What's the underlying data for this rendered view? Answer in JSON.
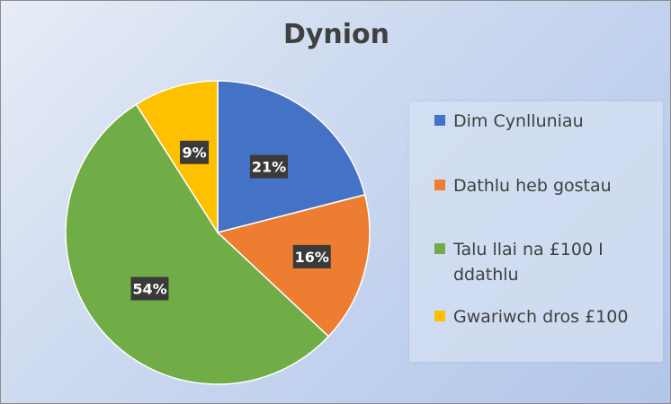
{
  "chart_data": {
    "type": "pie",
    "title": "Dynion",
    "categories": [
      "Dim Cynlluniau",
      "Dathlu heb gostau",
      "Talu llai na £100 I ddathlu",
      "Gwariwch dros £100"
    ],
    "values": [
      21,
      16,
      54,
      9
    ],
    "data_labels": [
      "21%",
      "16%",
      "54%",
      "9%"
    ],
    "colors": [
      "#4472c4",
      "#ed7d31",
      "#70ad47",
      "#ffc000"
    ],
    "legend_position": "right"
  }
}
